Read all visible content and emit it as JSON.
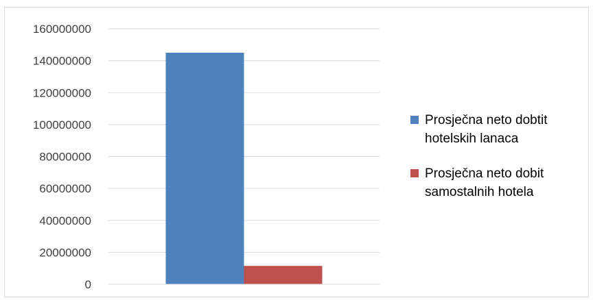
{
  "chart_data": {
    "type": "bar",
    "categories": [
      ""
    ],
    "series": [
      {
        "name": "Prosječna neto dobtit hotelskih lanaca",
        "values": [
          145000000
        ],
        "color": "#4f81bd",
        "legend_lines": [
          "Prosječna neto dobtit",
          "hotelskih lanaca"
        ]
      },
      {
        "name": "Prosječna neto dobit samostalnih hotela",
        "values": [
          11500000
        ],
        "color": "#c0504d",
        "legend_lines": [
          "Prosječna neto dobit",
          "samostalnih hotela"
        ]
      }
    ],
    "yticks": [
      "0",
      "20000000",
      "40000000",
      "60000000",
      "80000000",
      "100000000",
      "120000000",
      "140000000",
      "160000000"
    ],
    "ylim": [
      0,
      160000000
    ],
    "grid": true,
    "legend_position": "right",
    "title": "",
    "xlabel": "",
    "ylabel": ""
  }
}
